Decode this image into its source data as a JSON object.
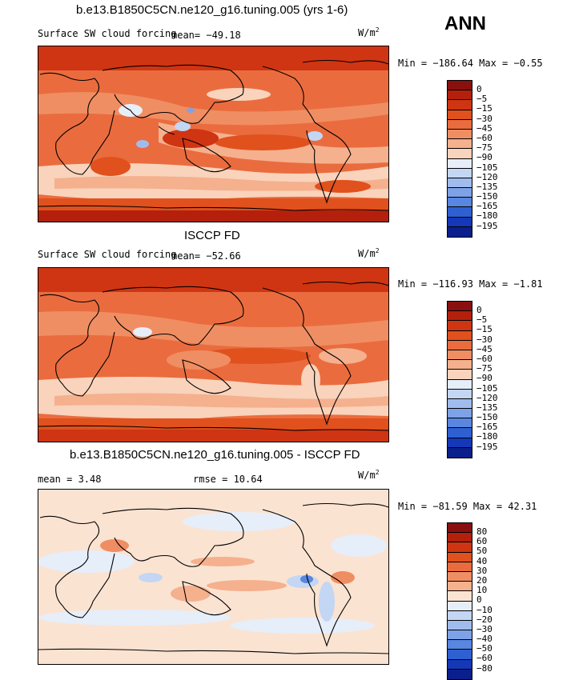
{
  "season": "ANN",
  "units_text": "W/m",
  "units_exp": "2",
  "panels": [
    {
      "title": "b.e13.B1850C5CN.ne120_g16.tuning.005 (yrs 1-6)",
      "variable": "Surface SW cloud forcing",
      "stat1": "mean= −49.18",
      "minmax": "Min = −186.64 Max =  −0.55",
      "levels": [
        "0",
        "−5",
        "−15",
        "−30",
        "−45",
        "−60",
        "−75",
        "−90",
        "−105",
        "−120",
        "−135",
        "−150",
        "−165",
        "−180",
        "−195"
      ],
      "colors": [
        "#8a0f0f",
        "#b4200c",
        "#cf3512",
        "#e0511e",
        "#ea6c3e",
        "#f08e63",
        "#f5b08e",
        "#f9d3bb",
        "#e6eefa",
        "#c3d6f4",
        "#a0bcee",
        "#7ea2e8",
        "#5886e0",
        "#2f60d2",
        "#1438b8",
        "#0a1f8c"
      ]
    },
    {
      "title": "ISCCP FD",
      "variable": "Surface SW cloud forcing",
      "stat1": "mean= −52.66",
      "minmax": "Min = −116.93 Max =  −1.81",
      "levels": [
        "0",
        "−5",
        "−15",
        "−30",
        "−45",
        "−60",
        "−75",
        "−90",
        "−105",
        "−120",
        "−135",
        "−150",
        "−165",
        "−180",
        "−195"
      ],
      "colors": [
        "#8a0f0f",
        "#b4200c",
        "#cf3512",
        "#e0511e",
        "#ea6c3e",
        "#f08e63",
        "#f5b08e",
        "#f9d3bb",
        "#e6eefa",
        "#c3d6f4",
        "#a0bcee",
        "#7ea2e8",
        "#5886e0",
        "#2f60d2",
        "#1438b8",
        "#0a1f8c"
      ]
    },
    {
      "title": "b.e13.B1850C5CN.ne120_g16.tuning.005 - ISCCP FD",
      "stat1": "mean =   3.48",
      "stat2": "rmse =  10.64",
      "minmax": "Min = −81.59 Max =  42.31",
      "levels": [
        "80",
        "60",
        "50",
        "40",
        "30",
        "20",
        "10",
        "0",
        "−10",
        "−20",
        "−30",
        "−40",
        "−50",
        "−60",
        "−80"
      ],
      "colors": [
        "#8a0f0f",
        "#b4200c",
        "#cf3512",
        "#e0511e",
        "#ea6c3e",
        "#f08e63",
        "#f5b08e",
        "#fbe3d2",
        "#e6eefa",
        "#c3d6f4",
        "#a0bcee",
        "#7ea2e8",
        "#5886e0",
        "#2f60d2",
        "#1438b8",
        "#0a1f8c"
      ]
    }
  ]
}
